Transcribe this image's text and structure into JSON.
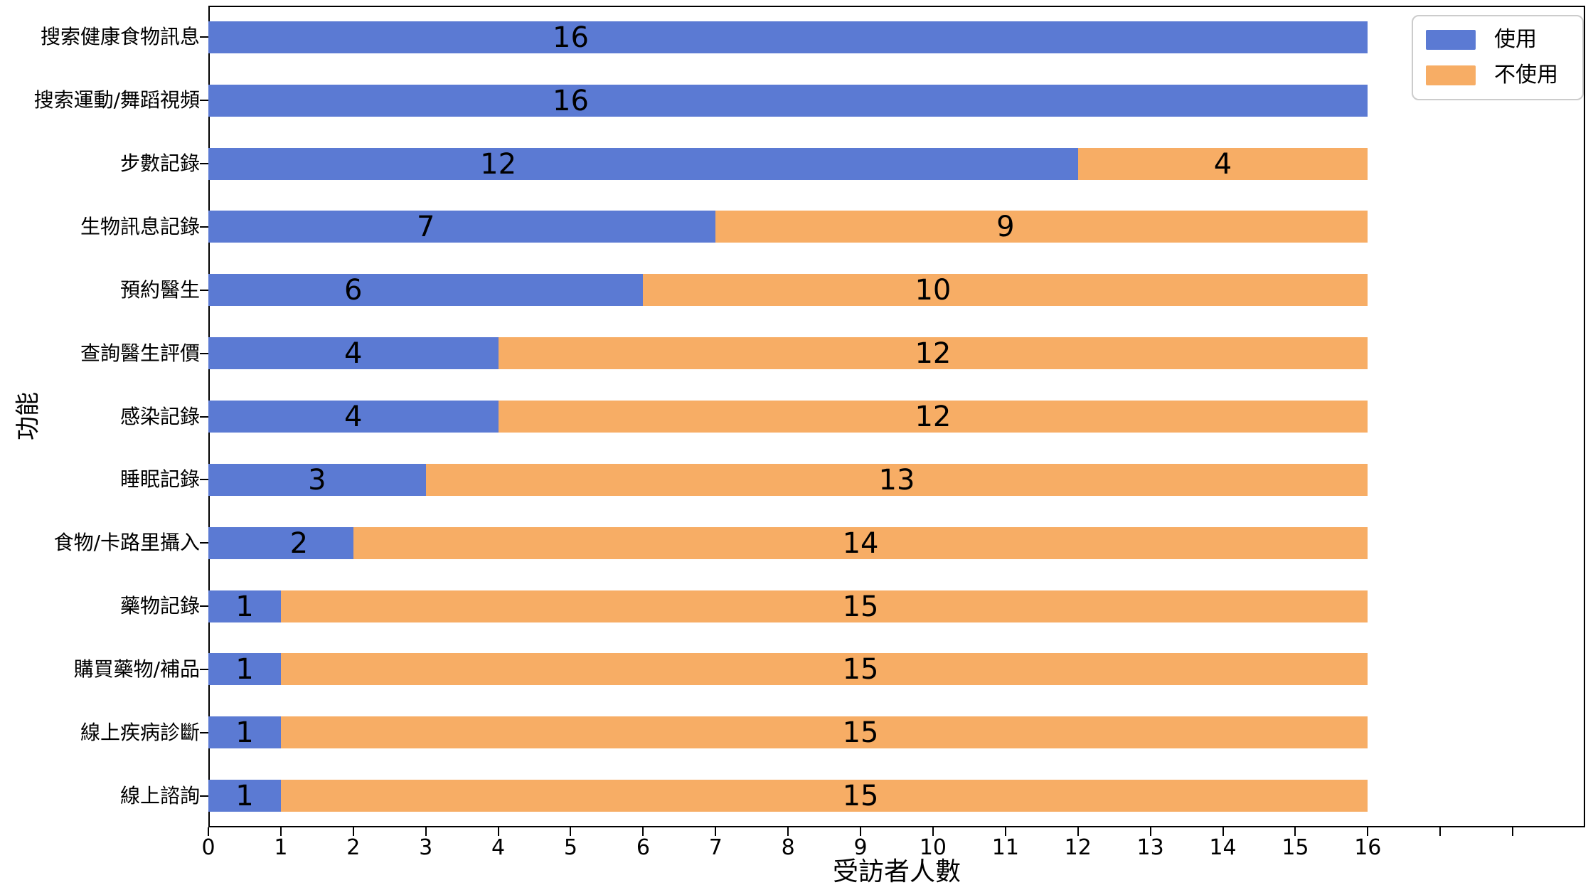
{
  "chart_data": {
    "type": "bar",
    "orientation": "horizontal",
    "stacked": true,
    "title": "",
    "xlabel": "受訪者人數",
    "ylabel": "功能",
    "xlim": [
      0,
      19
    ],
    "xticks_labeled": [
      0,
      1,
      2,
      3,
      4,
      5,
      6,
      7,
      8,
      9,
      10,
      11,
      12,
      13,
      14,
      15,
      16
    ],
    "xticks_unlabeled": [
      17,
      18
    ],
    "grid": false,
    "legend": {
      "position": "upper right",
      "entries": [
        "使用",
        "不使用"
      ]
    },
    "categories": [
      "搜索健康食物訊息",
      "搜索運動/舞蹈視頻",
      "步數記錄",
      "生物訊息記錄",
      "預約醫生",
      "查詢醫生評價",
      "感染記錄",
      "睡眠記錄",
      "食物/卡路里攝入",
      "藥物記錄",
      "購買藥物/補品",
      "線上疾病診斷",
      "線上諮詢"
    ],
    "series": [
      {
        "name": "使用",
        "color": "#5b7ad3",
        "values": [
          16,
          16,
          12,
          7,
          6,
          4,
          4,
          3,
          2,
          1,
          1,
          1,
          1
        ],
        "label_x": [
          5.0,
          5.0,
          4.0,
          3.0,
          2.0,
          2.0,
          2.0,
          1.5,
          1.25,
          0.5,
          0.5,
          0.5,
          0.5
        ]
      },
      {
        "name": "不使用",
        "color": "#f7ad65",
        "values": [
          0,
          0,
          4,
          9,
          10,
          12,
          12,
          13,
          14,
          15,
          15,
          15,
          15
        ],
        "label_x": [
          null,
          null,
          14.0,
          11.0,
          10.0,
          10.0,
          10.0,
          9.5,
          9.0,
          9.0,
          9.0,
          9.0,
          9.0
        ]
      }
    ]
  }
}
